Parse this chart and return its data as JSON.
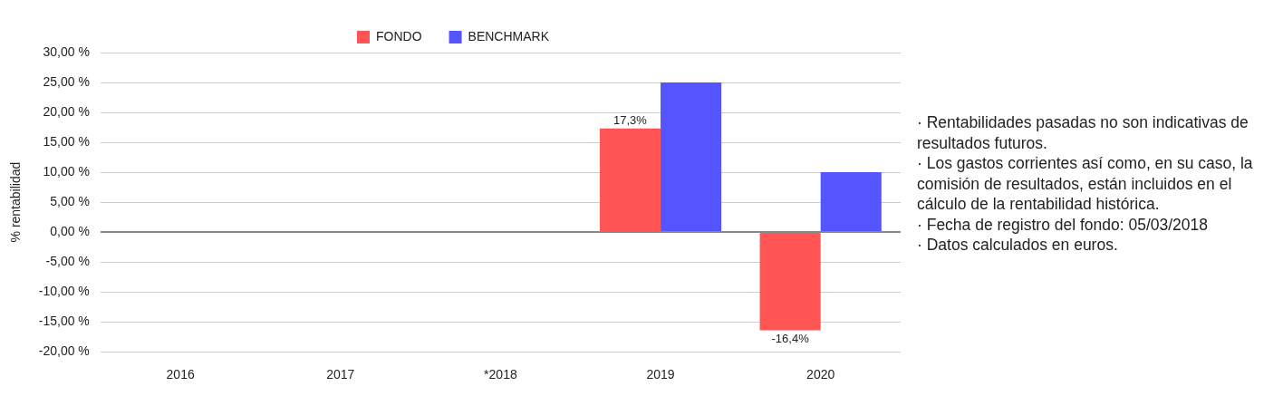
{
  "chart_data": {
    "type": "bar",
    "ylabel": "% rentabilidad",
    "categories": [
      "2016",
      "2017",
      "*2018",
      "2019",
      "2020"
    ],
    "series": [
      {
        "name": "FONDO",
        "color": "#ff5555",
        "values": [
          null,
          null,
          null,
          17.3,
          -16.4
        ],
        "value_labels": [
          null,
          null,
          null,
          "17,3%",
          "-16,4%"
        ]
      },
      {
        "name": "BENCHMARK",
        "color": "#5555ff",
        "values": [
          null,
          null,
          null,
          25.0,
          10.0
        ]
      }
    ],
    "ylim": [
      -20,
      30
    ],
    "yticks": [
      {
        "value": -20,
        "label": "-20,00 %"
      },
      {
        "value": -15,
        "label": "-15,00 %"
      },
      {
        "value": -10,
        "label": "-10,00 %"
      },
      {
        "value": -5,
        "label": "-5,00 %"
      },
      {
        "value": 0,
        "label": "0,00 %"
      },
      {
        "value": 5,
        "label": "5,00 %"
      },
      {
        "value": 10,
        "label": "10,00 %"
      },
      {
        "value": 15,
        "label": "15,00 %"
      },
      {
        "value": 20,
        "label": "20,00 %"
      },
      {
        "value": 25,
        "label": "25,00 %"
      },
      {
        "value": 30,
        "label": "30,00 %"
      }
    ],
    "grid": "y",
    "legend": "top",
    "annotations": [
      "· Rentabilidades pasadas no son indicativas de resultados futuros.",
      "· Los gastos corrientes así como, en su caso, la comisión de resultados, están incluidos en el cálculo de la rentabilidad histórica.",
      "· Fecha de registro del fondo: 05/03/2018",
      "· Datos calculados en euros."
    ]
  }
}
